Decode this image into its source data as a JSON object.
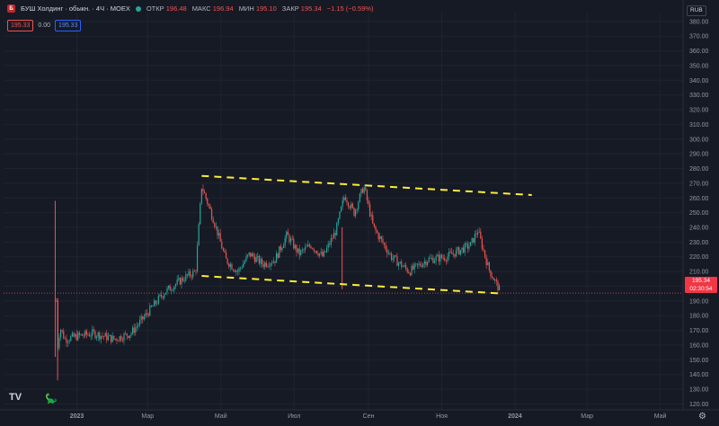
{
  "header": {
    "title": "БУШ Холдинг · обыкн. · 4Ч · MOEX",
    "open_label": "ОТКР",
    "open_value": "196.48",
    "high_label": "МАКС",
    "high_value": "196.94",
    "low_label": "МИН",
    "low_value": "195.10",
    "close_label": "ЗАКР",
    "close_value": "195.34",
    "change_value": "−1.15 (−0.59%)",
    "bid": "195.33",
    "spread": "0.00",
    "ask": "195.33"
  },
  "currency": "RUB",
  "last_price": {
    "value": "195.34",
    "timer": "02:30:54"
  },
  "colors": {
    "background": "#161a25",
    "grid": "#1f2430",
    "up": "#26a69a",
    "down": "#ef5350",
    "trendline": "#ffeb3b"
  },
  "icons": [
    "tradingview-logo-icon",
    "dino-icon",
    "settings-icon"
  ],
  "chart_data": {
    "type": "candlestick",
    "y_axis": {
      "range": [
        116,
        386
      ],
      "ticks": [
        "120.00",
        "130.00",
        "140.00",
        "150.00",
        "160.00",
        "170.00",
        "180.00",
        "190.00",
        "200.00",
        "210.00",
        "220.00",
        "230.00",
        "240.00",
        "250.00",
        "260.00",
        "270.00",
        "280.00",
        "290.00",
        "300.00",
        "310.00",
        "320.00",
        "330.00",
        "340.00",
        "350.00",
        "360.00",
        "370.00",
        "380.00"
      ]
    },
    "x_axis": {
      "ticks": [
        "2023",
        "Мар",
        "Май",
        "Июл",
        "Сен",
        "Ноя",
        "2024",
        "Мар",
        "Май"
      ]
    },
    "grid": true,
    "price_path": [
      [
        "2022-12-15",
        190
      ],
      [
        "2022-12-16",
        158
      ],
      [
        "2022-12-18",
        172
      ],
      [
        "2022-12-22",
        164
      ],
      [
        "2023-01-01",
        166
      ],
      [
        "2023-01-15",
        168
      ],
      [
        "2023-02-01",
        164
      ],
      [
        "2023-02-15",
        168
      ],
      [
        "2023-03-01",
        182
      ],
      [
        "2023-03-15",
        196
      ],
      [
        "2023-04-01",
        206
      ],
      [
        "2023-04-10",
        210
      ],
      [
        "2023-04-15",
        268
      ],
      [
        "2023-04-25",
        245
      ],
      [
        "2023-05-05",
        218
      ],
      [
        "2023-05-15",
        210
      ],
      [
        "2023-05-25",
        222
      ],
      [
        "2023-06-05",
        215
      ],
      [
        "2023-06-15",
        218
      ],
      [
        "2023-06-25",
        235
      ],
      [
        "2023-07-05",
        222
      ],
      [
        "2023-07-15",
        228
      ],
      [
        "2023-07-25",
        220
      ],
      [
        "2023-08-05",
        238
      ],
      [
        "2023-08-12",
        262
      ],
      [
        "2023-08-20",
        250
      ],
      [
        "2023-08-28",
        268
      ],
      [
        "2023-09-05",
        240
      ],
      [
        "2023-09-20",
        220
      ],
      [
        "2023-10-05",
        210
      ],
      [
        "2023-10-20",
        218
      ],
      [
        "2023-11-05",
        220
      ],
      [
        "2023-11-25",
        228
      ],
      [
        "2023-12-01",
        238
      ],
      [
        "2023-12-10",
        212
      ],
      [
        "2023-12-20",
        196
      ]
    ],
    "spikes": [
      {
        "date": "2022-12-14",
        "high": 258,
        "low": 152
      },
      {
        "date": "2022-12-16",
        "high": 192,
        "low": 136
      },
      {
        "date": "2023-08-10",
        "high": 240,
        "low": 198
      }
    ],
    "trendlines": [
      {
        "from": [
          "2023-04-15",
          275
        ],
        "to": [
          "2024-01-15",
          262
        ]
      },
      {
        "from": [
          "2023-04-15",
          207
        ],
        "to": [
          "2023-12-22",
          195
        ]
      }
    ],
    "current_price_line": 195.34
  }
}
